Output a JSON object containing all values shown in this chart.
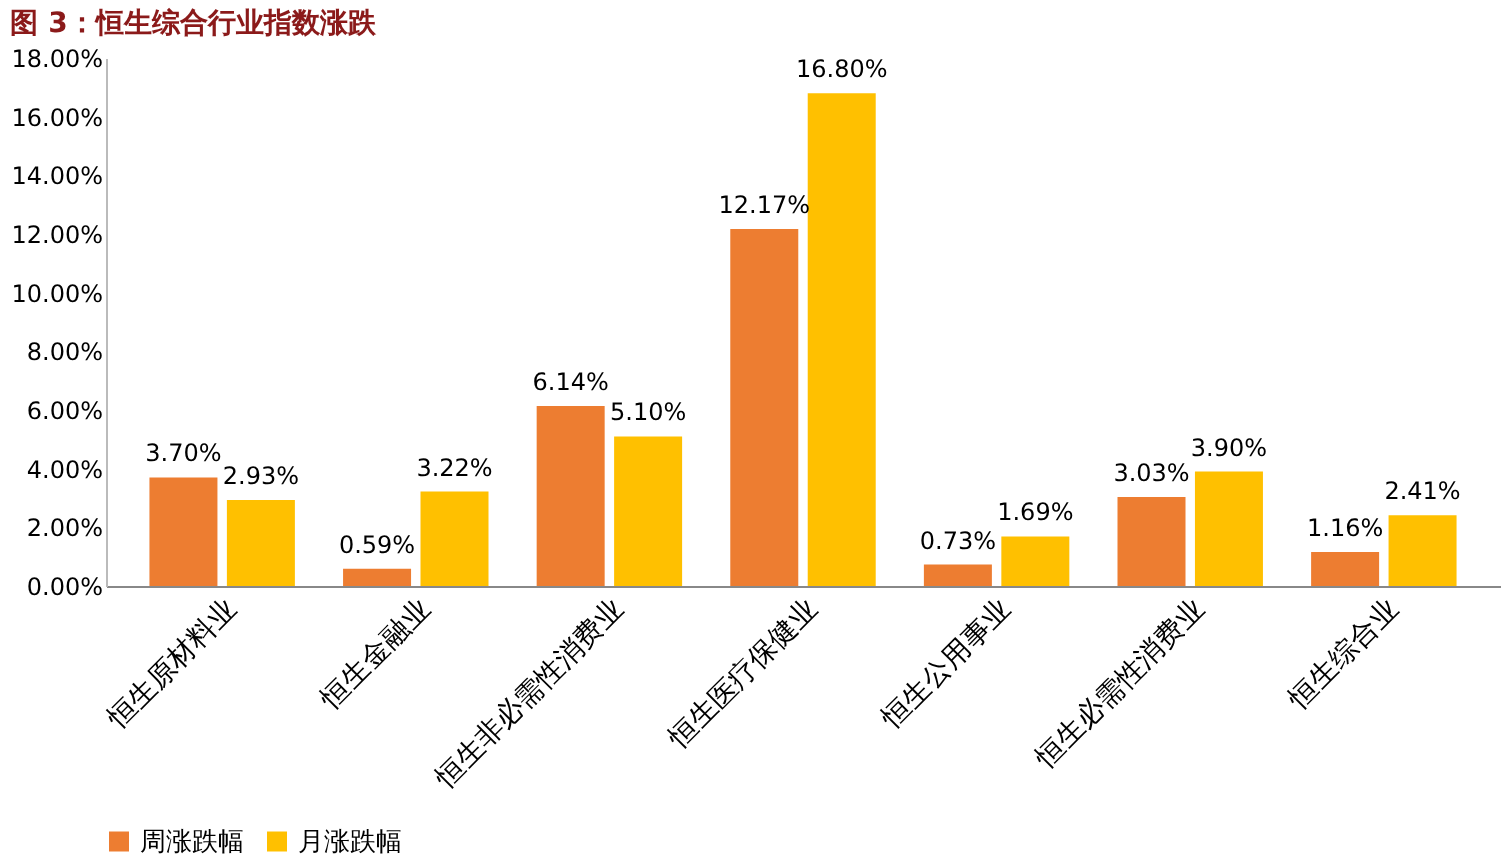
{
  "chart_data": {
    "type": "bar",
    "title": "图 3：恒生综合行业指数涨跌",
    "categories": [
      "恒生原材料业",
      "恒生金融业",
      "恒生非必需性消费业",
      "恒生医疗保健业",
      "恒生公用事业",
      "恒生必需性消费业",
      "恒生综合业"
    ],
    "series": [
      {
        "name": "周涨跌幅",
        "color": "#ed7d31",
        "values": [
          3.7,
          0.59,
          6.14,
          12.17,
          0.73,
          3.03,
          1.16
        ],
        "value_labels": [
          "3.70%",
          "0.59%",
          "6.14%",
          "12.17%",
          "0.73%",
          "3.03%",
          "1.16%"
        ]
      },
      {
        "name": "月涨跌幅",
        "color": "#ffc000",
        "values": [
          2.93,
          3.22,
          5.1,
          16.8,
          1.69,
          3.9,
          2.41
        ],
        "value_labels": [
          "2.93%",
          "3.22%",
          "5.10%",
          "16.80%",
          "1.69%",
          "3.90%",
          "2.41%"
        ]
      }
    ],
    "ylim": [
      0,
      18
    ],
    "yticks": [
      {
        "value": 0,
        "label": "0.00%"
      },
      {
        "value": 2,
        "label": "2.00%"
      },
      {
        "value": 4,
        "label": "4.00%"
      },
      {
        "value": 6,
        "label": "6.00%"
      },
      {
        "value": 8,
        "label": "8.00%"
      },
      {
        "value": 10,
        "label": "10.00%"
      },
      {
        "value": 12,
        "label": "12.00%"
      },
      {
        "value": 14,
        "label": "14.00%"
      },
      {
        "value": 16,
        "label": "16.00%"
      },
      {
        "value": 18,
        "label": "18.00%"
      }
    ],
    "grid": false,
    "legend": "bottom"
  }
}
